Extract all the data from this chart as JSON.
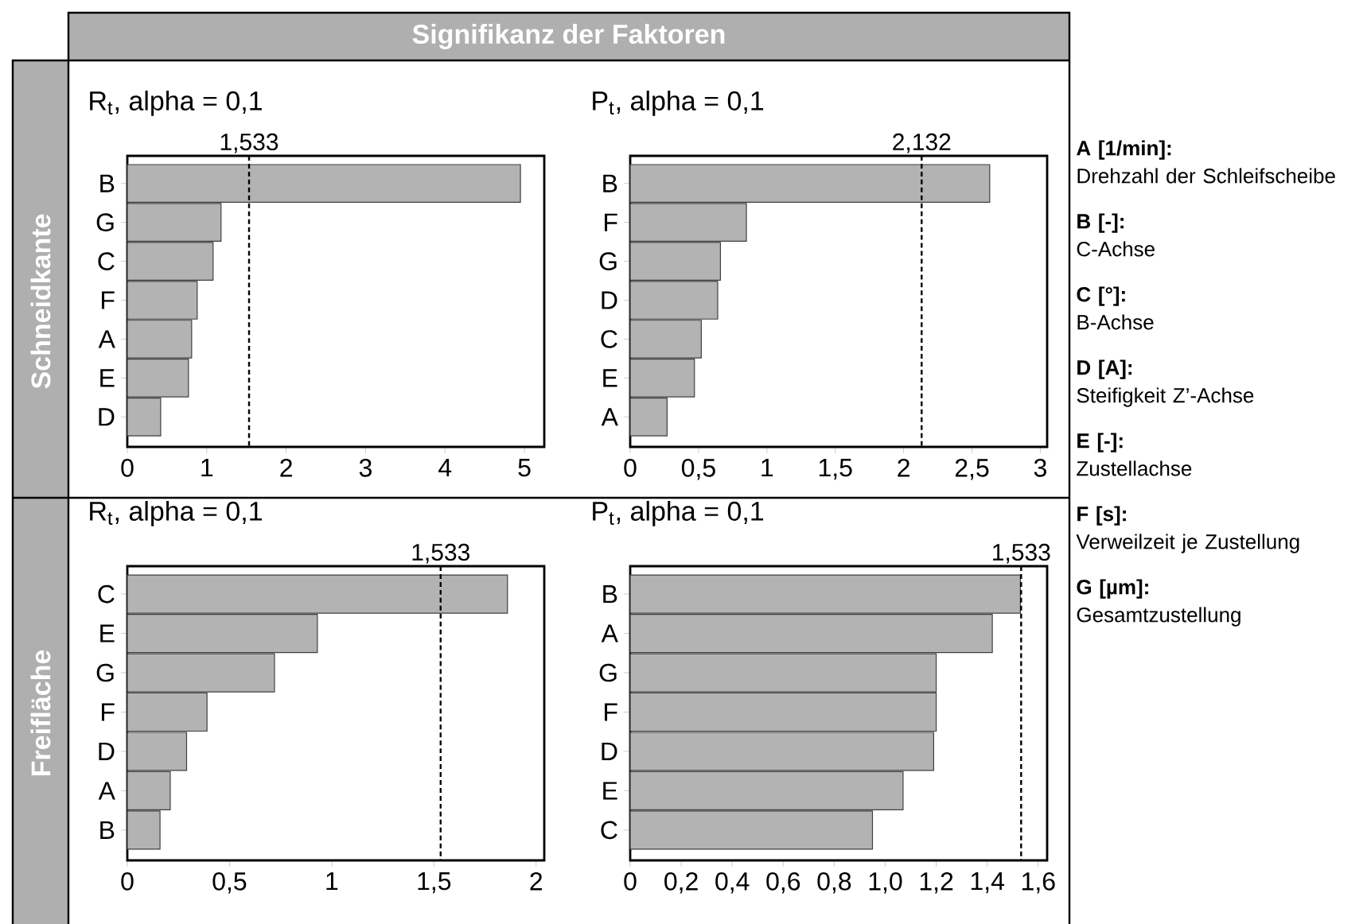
{
  "chart_data": [
    {
      "type": "bar",
      "orientation": "horizontal",
      "title": "R$_{t}$, alpha = 0,1",
      "ylabel": "Schneidkante",
      "categories": [
        "B",
        "G",
        "C",
        "F",
        "A",
        "E",
        "D"
      ],
      "values": [
        4.95,
        1.18,
        1.08,
        0.88,
        0.81,
        0.77,
        0.42
      ],
      "color": "#b3b3b3",
      "xlim": [
        0,
        5.25
      ],
      "xticks": [
        0,
        1,
        2,
        3,
        4,
        5
      ],
      "ref_lines": [
        {
          "axis": "x",
          "value": 1.533,
          "label": "1,533",
          "color": "#000000",
          "line_style": "dashed"
        }
      ]
    },
    {
      "type": "bar",
      "orientation": "horizontal",
      "title": "P$_{t}$, alpha = 0,1",
      "categories": [
        "B",
        "F",
        "G",
        "D",
        "C",
        "E",
        "A"
      ],
      "values": [
        2.63,
        0.85,
        0.66,
        0.64,
        0.52,
        0.47,
        0.27
      ],
      "color": "#b3b3b3",
      "xlim": [
        0,
        3.05
      ],
      "xticks": [
        0,
        {
          "value": 0.5,
          "label": "0,5"
        },
        1,
        {
          "value": 1.5,
          "label": "1,5"
        },
        2,
        {
          "value": 2.5,
          "label": "2,5"
        },
        3
      ],
      "ref_lines": [
        {
          "axis": "x",
          "value": 2.132,
          "label": "2,132",
          "color": "#000000",
          "line_style": "dashed"
        }
      ]
    },
    {
      "type": "bar",
      "orientation": "horizontal",
      "title": "R$_{t}$, alpha = 0,1",
      "ylabel": "Freifläche",
      "categories": [
        "C",
        "E",
        "G",
        "F",
        "D",
        "A",
        "B"
      ],
      "values": [
        1.86,
        0.93,
        0.72,
        0.39,
        0.29,
        0.21,
        0.16
      ],
      "color": "#b3b3b3",
      "xlim": [
        0,
        2.04
      ],
      "xticks": [
        0,
        {
          "value": 0.5,
          "label": "0,5"
        },
        1,
        {
          "value": 1.5,
          "label": "1,5"
        },
        2
      ],
      "ref_lines": [
        {
          "axis": "x",
          "value": 1.533,
          "label": "1,533",
          "color": "#000000",
          "line_style": "dashed"
        }
      ]
    },
    {
      "type": "bar",
      "orientation": "horizontal",
      "title": "P$_{t}$, alpha = 0,1",
      "categories": [
        "B",
        "A",
        "G",
        "F",
        "D",
        "E",
        "C"
      ],
      "values": [
        1.53,
        1.42,
        1.2,
        1.2,
        1.19,
        1.07,
        0.95
      ],
      "color": "#b3b3b3",
      "xlim": [
        0,
        1.635
      ],
      "xticks": [
        0,
        {
          "value": 0.2,
          "label": "0,2"
        },
        {
          "value": 0.4,
          "label": "0,4"
        },
        {
          "value": 0.6,
          "label": "0,6"
        },
        {
          "value": 0.8,
          "label": "0,8"
        },
        {
          "value": 1.0,
          "label": "1,0"
        },
        {
          "value": 1.2,
          "label": "1,2"
        },
        {
          "value": 1.4,
          "label": "1,4"
        },
        {
          "value": 1.6,
          "label": "1,6"
        }
      ],
      "ref_lines": [
        {
          "axis": "x",
          "value": 1.533,
          "label": "1,533",
          "color": "#000000",
          "line_style": "dashed"
        }
      ]
    },
    {
      "type": "other",
      "title": "Signifikanz der Faktoren",
      "annotations": [
        "A [1/min]:",
        "Drehzahl der Schleifscheibe",
        "B [-]:",
        "C-Achse",
        "C [°]:",
        "B-Achse",
        "D [A]:",
        "Steifigkeit Z’-Achse",
        "E [-]:",
        "Zustellachse",
        "F [s]:",
        "Verweilzeit je Zustellung",
        "G [µm]:",
        "Gesamtzustellung"
      ]
    }
  ]
}
